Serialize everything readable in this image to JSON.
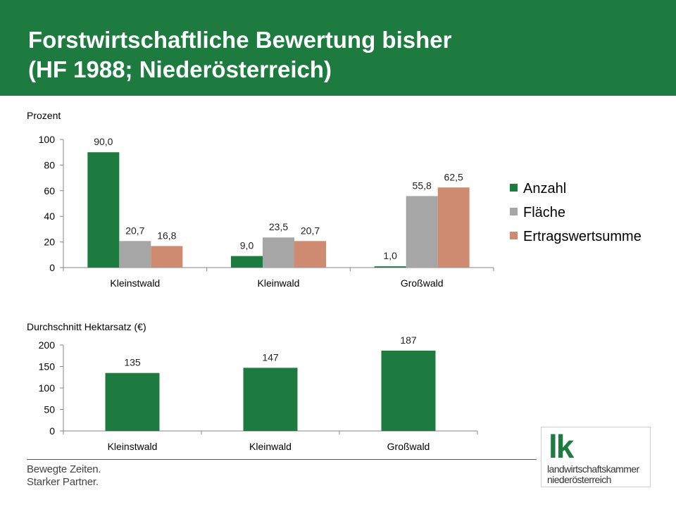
{
  "header": {
    "title_line1": "Forstwirtschaftliche Bewertung bisher",
    "title_line2": "(HF 1988; Niederösterreich)"
  },
  "chart_data": [
    {
      "type": "bar",
      "ylabel": "Prozent",
      "categories": [
        "Kleinstwald",
        "Kleinwald",
        "Großwald"
      ],
      "series": [
        {
          "name": "Anzahl",
          "values": [
            90.0,
            9.0,
            1.0
          ],
          "labels": [
            "90,0",
            "9,0",
            "1,0"
          ],
          "color": "#1e7b40"
        },
        {
          "name": "Fläche",
          "values": [
            20.7,
            23.5,
            55.8
          ],
          "labels": [
            "20,7",
            "23,5",
            "55,8"
          ],
          "color": "#a6a6a6"
        },
        {
          "name": "Ertragswertsumme",
          "values": [
            16.8,
            20.7,
            62.5
          ],
          "labels": [
            "16,8",
            "20,7",
            "62,5"
          ],
          "color": "#ce8b72"
        }
      ],
      "ylim": [
        0,
        100
      ],
      "yticks": [
        0,
        20,
        40,
        60,
        80,
        100
      ],
      "legend": "right",
      "grid": false
    },
    {
      "type": "bar",
      "ylabel": "Durchschnitt Hektarsatz (€)",
      "categories": [
        "Kleinstwald",
        "Kleinwald",
        "Großwald"
      ],
      "series": [
        {
          "values": [
            135,
            147,
            187
          ],
          "labels": [
            "135",
            "147",
            "187"
          ],
          "color": "#1e7b40"
        }
      ],
      "ylim": [
        0,
        200
      ],
      "yticks": [
        0,
        50,
        100,
        150,
        200
      ],
      "legend": "none",
      "grid": false
    }
  ],
  "footer": {
    "slogan_line1": "Bewegte Zeiten.",
    "slogan_line2": "Starker Partner.",
    "logo_mark": "lk",
    "logo_line1": "landwirtschaftskammer",
    "logo_line2": "niederösterreich"
  }
}
